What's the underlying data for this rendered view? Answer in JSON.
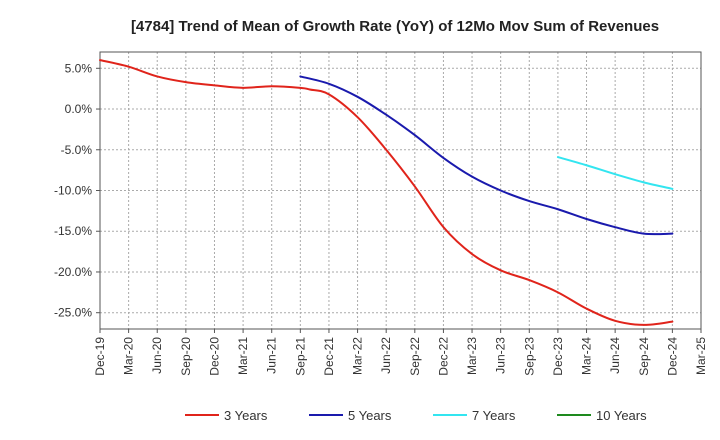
{
  "chart_data": {
    "type": "line",
    "title": "[4784]  Trend of Mean of Growth Rate (YoY) of 12Mo Mov Sum of Revenues",
    "xlabel": "",
    "ylabel": "",
    "ylim": [
      -27,
      7
    ],
    "yticks": [
      5,
      0,
      -5,
      -10,
      -15,
      -20,
      -25
    ],
    "ytick_labels": [
      "5.0%",
      "0.0%",
      "-5.0%",
      "-10.0%",
      "-15.0%",
      "-20.0%",
      "-25.0%"
    ],
    "x_range": [
      0,
      63
    ],
    "xticks": [
      0,
      3,
      6,
      9,
      12,
      15,
      18,
      21,
      24,
      27,
      30,
      33,
      36,
      39,
      42,
      45,
      48,
      51,
      54,
      57,
      60,
      63
    ],
    "xtick_labels": [
      "Dec-19",
      "Mar-20",
      "Jun-20",
      "Sep-20",
      "Dec-20",
      "Mar-21",
      "Jun-21",
      "Sep-21",
      "Dec-21",
      "Mar-22",
      "Jun-22",
      "Sep-22",
      "Dec-22",
      "Mar-23",
      "Jun-23",
      "Sep-23",
      "Dec-23",
      "Mar-24",
      "Jun-24",
      "Sep-24",
      "Dec-24",
      "Mar-25"
    ],
    "grid": true,
    "legend_position": "bottom",
    "series": [
      {
        "name": "3 Years",
        "color": "#e0241b",
        "x": [
          0,
          3,
          6,
          9,
          12,
          15,
          18,
          21,
          22,
          24,
          27,
          30,
          33,
          36,
          39,
          42,
          45,
          48,
          51,
          54,
          57,
          60
        ],
        "values": [
          6.0,
          5.2,
          4.0,
          3.3,
          2.9,
          2.6,
          2.8,
          2.6,
          2.4,
          1.8,
          -1.0,
          -5.0,
          -9.5,
          -14.5,
          -17.8,
          -19.8,
          -21.0,
          -22.5,
          -24.5,
          -26.0,
          -26.5,
          -26.1
        ]
      },
      {
        "name": "5 Years",
        "color": "#1a1aad",
        "x": [
          21,
          24,
          27,
          30,
          33,
          36,
          39,
          42,
          45,
          48,
          51,
          54,
          57,
          60
        ],
        "values": [
          4.0,
          3.1,
          1.5,
          -0.7,
          -3.2,
          -6.0,
          -8.3,
          -10.0,
          -11.3,
          -12.3,
          -13.5,
          -14.5,
          -15.3,
          -15.3
        ]
      },
      {
        "name": "7 Years",
        "color": "#33e5f0",
        "x": [
          48,
          51,
          54,
          57,
          60
        ],
        "values": [
          -5.9,
          -6.9,
          -8.0,
          -9.0,
          -9.8
        ]
      },
      {
        "name": "10 Years",
        "color": "#1e8a1e",
        "x": [],
        "values": []
      }
    ]
  }
}
